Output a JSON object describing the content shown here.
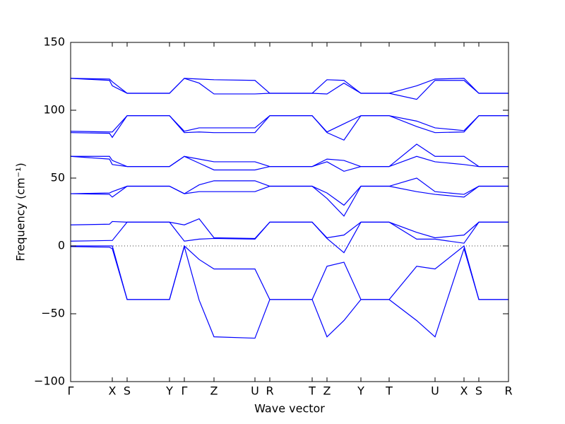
{
  "chart_data": {
    "type": "line",
    "x_label": "Wave vector",
    "y_label": "Frequency (cm⁻¹)",
    "color": "#0000ff",
    "zero_line": 0,
    "xlim": [
      0,
      620
    ],
    "xticks": [
      {
        "value": 0,
        "label": "Γ"
      },
      {
        "value": 59,
        "label": "X"
      },
      {
        "value": 80,
        "label": "S"
      },
      {
        "value": 140,
        "label": "Y"
      },
      {
        "value": 161,
        "label": "Γ"
      },
      {
        "value": 203,
        "label": "Z"
      },
      {
        "value": 261,
        "label": "U"
      },
      {
        "value": 282,
        "label": "R"
      },
      {
        "value": 342,
        "label": "T"
      },
      {
        "value": 363,
        "label": "Z"
      },
      {
        "value": 411,
        "label": "Y"
      },
      {
        "value": 451,
        "label": "T"
      },
      {
        "value": 516,
        "label": "U"
      },
      {
        "value": 557,
        "label": "X"
      },
      {
        "value": 578,
        "label": "S"
      },
      {
        "value": 620,
        "label": "R"
      }
    ],
    "ylim": [
      -100,
      150
    ],
    "yticks": [
      {
        "value": -100,
        "label": "−100"
      },
      {
        "value": -50,
        "label": "−50"
      },
      0,
      50,
      100,
      150
    ],
    "x": [
      0,
      55,
      59,
      80,
      140,
      161,
      182,
      203,
      261,
      282,
      342,
      363,
      387,
      411,
      451,
      490,
      516,
      557,
      578,
      620
    ],
    "series": [
      {
        "values": [
          123.5,
          123,
          121,
          112.5,
          112.5,
          123.5,
          123,
          122.5,
          122,
          112.5,
          112.5,
          122.5,
          122,
          112.5,
          112.5,
          118,
          123,
          123.5,
          112.5,
          112.5
        ]
      },
      {
        "values": [
          123.5,
          122,
          118,
          112.5,
          112.5,
          123.5,
          120,
          112,
          112,
          112.5,
          112.5,
          112,
          120,
          112.5,
          112.5,
          108,
          122,
          122,
          112.5,
          112.5
        ]
      },
      {
        "values": [
          84.5,
          84,
          84,
          96,
          96,
          84.5,
          87,
          87,
          87,
          96,
          96,
          84,
          90,
          96,
          96,
          92,
          87,
          85,
          96,
          96
        ]
      },
      {
        "values": [
          83.5,
          83,
          80,
          96,
          96,
          83.5,
          84,
          83.5,
          83.5,
          96,
          96,
          83.5,
          78,
          96,
          96,
          88,
          83.5,
          84,
          96,
          96
        ]
      },
      {
        "values": [
          66,
          66,
          63,
          58.5,
          58.5,
          66,
          64,
          62,
          62,
          58.5,
          58.5,
          64,
          63,
          58.5,
          58.5,
          75,
          66,
          66,
          58.5,
          58.5
        ]
      },
      {
        "values": [
          66,
          64,
          60,
          58.5,
          58.5,
          66,
          61,
          56,
          56,
          58.5,
          58.5,
          62,
          55,
          58.5,
          58.5,
          66,
          62,
          60,
          58.5,
          58.5
        ]
      },
      {
        "values": [
          38.5,
          39,
          40,
          44,
          44,
          38.5,
          45,
          48,
          48,
          44,
          44,
          39,
          30,
          44,
          44,
          50,
          40,
          38,
          44,
          44
        ]
      },
      {
        "values": [
          38.5,
          38,
          36,
          44,
          44,
          38.5,
          40,
          40,
          40,
          44,
          44,
          35,
          22,
          44,
          44,
          40,
          38,
          36,
          44,
          44
        ]
      },
      {
        "values": [
          15.5,
          16,
          18,
          17.5,
          17.5,
          15.5,
          20,
          6,
          5.5,
          17.5,
          17.5,
          6,
          8,
          17.5,
          17.5,
          10,
          6,
          8,
          17.5,
          17.5
        ]
      },
      {
        "values": [
          3.5,
          4,
          4,
          17.5,
          17.5,
          3.5,
          5,
          5.5,
          5,
          17.5,
          17.5,
          5.5,
          -5,
          17.5,
          17.5,
          5,
          5,
          2,
          17.5,
          17.5
        ]
      },
      {
        "values": [
          0,
          0,
          0,
          -39.5,
          -39.5,
          0,
          -10,
          -17,
          -17,
          -39.5,
          -39.5,
          -15,
          -12,
          -39.5,
          -39.5,
          -15,
          -17,
          0,
          -39.5,
          -39.5
        ]
      },
      {
        "values": [
          -0.5,
          -1,
          -2,
          -39.5,
          -39.5,
          -0.5,
          -40,
          -67,
          -68,
          -39.5,
          -39.5,
          -67,
          -55,
          -39.5,
          -39.5,
          -55,
          -67,
          -2,
          -39.5,
          -39.5
        ]
      }
    ]
  }
}
